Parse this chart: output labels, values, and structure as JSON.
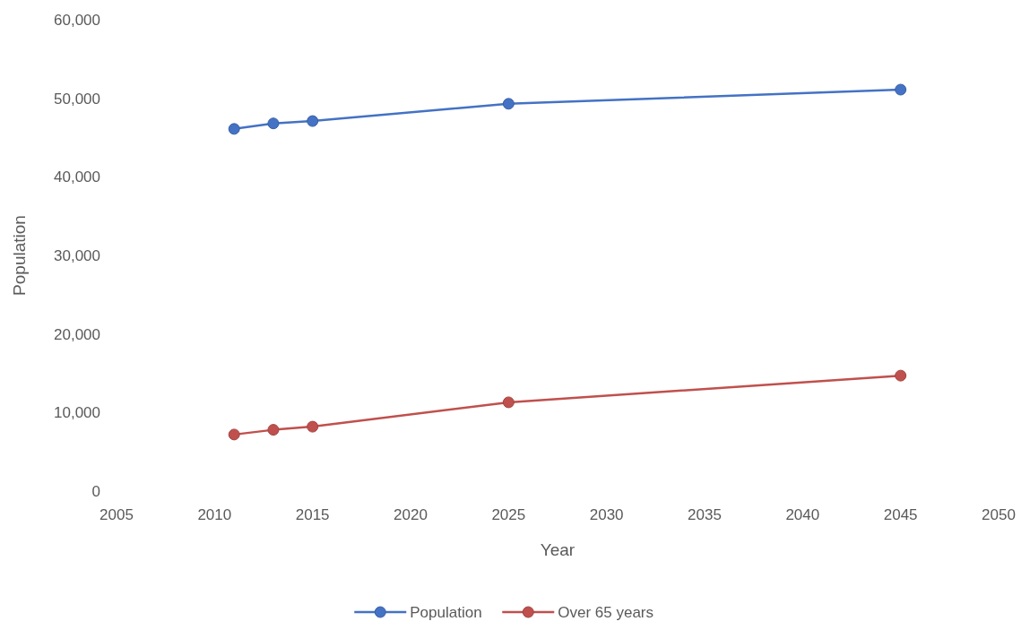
{
  "chart_data": {
    "type": "line",
    "xlabel": "Year",
    "ylabel": "Population",
    "x": [
      2011,
      2013,
      2015,
      2025,
      2045
    ],
    "series": [
      {
        "name": "Population",
        "color": "#4472c4",
        "values": [
          46100,
          46800,
          47100,
          49300,
          51100
        ]
      },
      {
        "name": "Over 65 years",
        "color": "#c0504d",
        "values": [
          7200,
          7800,
          8200,
          11300,
          14700
        ]
      }
    ],
    "xlim": [
      2005,
      2050
    ],
    "xticks": [
      2005,
      2010,
      2015,
      2020,
      2025,
      2030,
      2035,
      2040,
      2045,
      2050
    ],
    "ylim": [
      0,
      60000
    ],
    "yticks": [
      {
        "value": 0,
        "label": "0"
      },
      {
        "value": 10000,
        "label": "10,000"
      },
      {
        "value": 20000,
        "label": "20,000"
      },
      {
        "value": 30000,
        "label": "30,000"
      },
      {
        "value": 40000,
        "label": "40,000"
      },
      {
        "value": 50000,
        "label": "50,000"
      },
      {
        "value": 60000,
        "label": "60,000"
      }
    ],
    "grid": false,
    "legend": "bottom",
    "marker": "circle",
    "line_style": "solid"
  }
}
